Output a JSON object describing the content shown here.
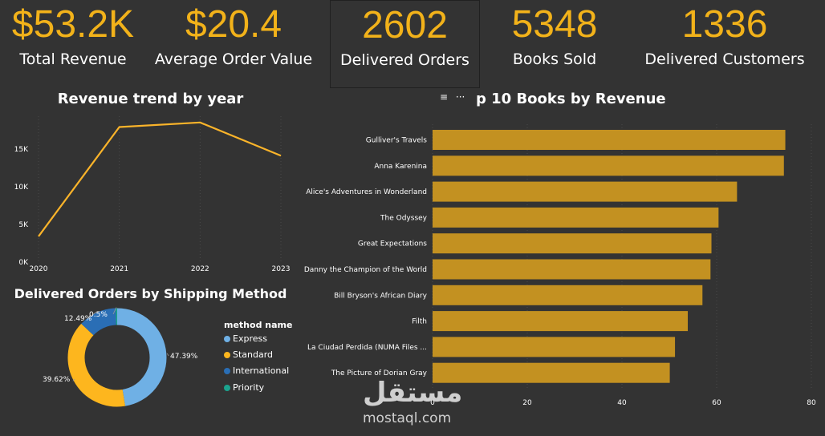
{
  "kpis": [
    {
      "value": "$53.2K",
      "label": "Total Revenue"
    },
    {
      "value": "$20.4",
      "label": "Average Order Value"
    },
    {
      "value": "2602",
      "label": "Delivered Orders"
    },
    {
      "value": "5348",
      "label": "Books Sold"
    },
    {
      "value": "1336",
      "label": "Delivered Customers"
    }
  ],
  "colors": {
    "accent": "#F2B21A",
    "background": "#333333",
    "bar": "#C39121",
    "line": "#FBB42A",
    "express": "#6FB0E5",
    "standard": "#FDB61E",
    "international": "#2A6EB5",
    "priority": "#1BA38E"
  },
  "chart_data": [
    {
      "type": "line",
      "title": "Revenue trend by year",
      "x": [
        "2020",
        "2021",
        "2022",
        "2023"
      ],
      "values": [
        3300,
        17800,
        18400,
        14000
      ],
      "y_ticks": [
        "0K",
        "5K",
        "10K",
        "15K"
      ],
      "ylim": [
        0,
        18700
      ],
      "grid": true
    },
    {
      "type": "bar",
      "title": "Top 10 Books by Revenue",
      "title_visible": "p 10 Books by Revenue",
      "orientation": "horizontal",
      "categories": [
        "Gulliver's Travels",
        "Anna Karenina",
        "Alice's Adventures in Wonderland",
        "The Odyssey",
        "Great Expectations",
        "Danny the Champion of the World",
        "Bill Bryson's African Diary",
        "Filth",
        "La Ciudad Perdida (NUMA Files ...",
        "The Picture of Dorian Gray"
      ],
      "values": [
        74.5,
        74.2,
        64.3,
        60.4,
        58.9,
        58.7,
        57.0,
        53.9,
        51.2,
        50.1
      ],
      "x_ticks": [
        "0",
        "20",
        "40",
        "60",
        "80"
      ],
      "xlim": [
        0,
        80
      ],
      "grid": true
    },
    {
      "type": "pie",
      "donut": true,
      "title": "Delivered Orders by Shipping Method",
      "legend_title": "method name",
      "legend_position": "right",
      "slices": [
        {
          "name": "Express",
          "value": 47.39,
          "label": "47.39%"
        },
        {
          "name": "Standard",
          "value": 39.62,
          "label": "39.62%"
        },
        {
          "name": "International",
          "value": 12.49,
          "label": "12.49%"
        },
        {
          "name": "Priority",
          "value": 0.5,
          "label": "0.5%"
        }
      ]
    }
  ],
  "watermark": {
    "arabic": "مستقل",
    "latin": "mostaql.com"
  }
}
